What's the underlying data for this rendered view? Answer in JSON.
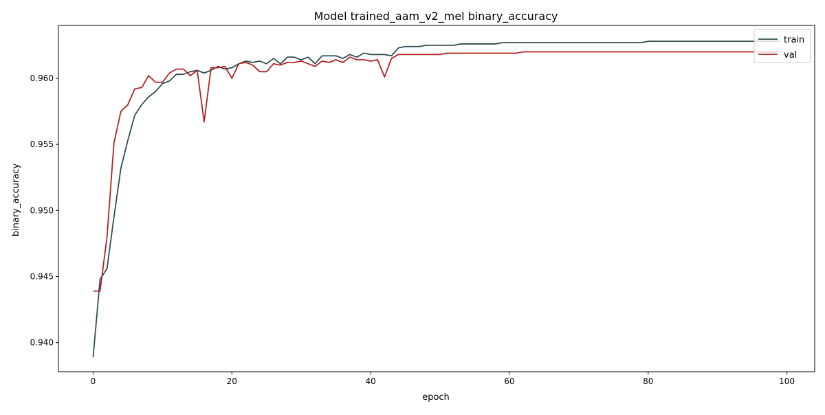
{
  "chart_data": {
    "type": "line",
    "title": "Model trained_aam_v2_mel binary_accuracy",
    "xlabel": "epoch",
    "ylabel": "binary_accuracy",
    "xlim": [
      -5,
      104
    ],
    "ylim": [
      0.9378,
      0.964
    ],
    "xticks": [
      0,
      20,
      40,
      60,
      80,
      100
    ],
    "yticks": [
      0.94,
      0.945,
      0.95,
      0.955,
      0.96
    ],
    "ytick_labels": [
      "0.940",
      "0.945",
      "0.950",
      "0.955",
      "0.960"
    ],
    "grid": false,
    "legend_position": "top-right",
    "series": [
      {
        "name": "train",
        "color": "#2f4f4f",
        "values": [
          0.9389,
          0.9448,
          0.9456,
          0.9495,
          0.9532,
          0.9553,
          0.9572,
          0.958,
          0.9586,
          0.959,
          0.9596,
          0.9598,
          0.9603,
          0.9603,
          0.9605,
          0.9606,
          0.9604,
          0.9606,
          0.9609,
          0.9607,
          0.9608,
          0.9611,
          0.9613,
          0.9612,
          0.9613,
          0.9611,
          0.9615,
          0.9611,
          0.9616,
          0.9616,
          0.9614,
          0.9616,
          0.9611,
          0.9617,
          0.9617,
          0.9617,
          0.9615,
          0.9618,
          0.9616,
          0.9619,
          0.9618,
          0.9618,
          0.9618,
          0.9617,
          0.9623,
          0.9624,
          0.9624,
          0.9624,
          0.9625,
          0.9625,
          0.9625,
          0.9625,
          0.9625,
          0.9626,
          0.9626,
          0.9626,
          0.9626,
          0.9626,
          0.9626,
          0.9627,
          0.9627,
          0.9627,
          0.9627,
          0.9627,
          0.9627,
          0.9627,
          0.9627,
          0.9627,
          0.9627,
          0.9627,
          0.9627,
          0.9627,
          0.9627,
          0.9627,
          0.9627,
          0.9627,
          0.9627,
          0.9627,
          0.9627,
          0.9627,
          0.9628,
          0.9628,
          0.9628,
          0.9628,
          0.9628,
          0.9628,
          0.9628,
          0.9628,
          0.9628,
          0.9628,
          0.9628,
          0.9628,
          0.9628,
          0.9628,
          0.9628,
          0.9628,
          0.9628,
          0.9628,
          0.9628,
          0.9628
        ]
      },
      {
        "name": "val",
        "color": "#b22222",
        "values": [
          0.9439,
          0.9439,
          0.948,
          0.9551,
          0.9575,
          0.958,
          0.9592,
          0.9593,
          0.9602,
          0.9597,
          0.9597,
          0.9604,
          0.9607,
          0.9607,
          0.9602,
          0.9606,
          0.9567,
          0.9608,
          0.9608,
          0.9609,
          0.96,
          0.9611,
          0.9612,
          0.961,
          0.9605,
          0.9605,
          0.9611,
          0.961,
          0.9612,
          0.9612,
          0.9613,
          0.9611,
          0.9609,
          0.9613,
          0.9612,
          0.9614,
          0.9612,
          0.9616,
          0.9614,
          0.9614,
          0.9613,
          0.9614,
          0.9601,
          0.9615,
          0.9618,
          0.9618,
          0.9618,
          0.9618,
          0.9618,
          0.9618,
          0.9618,
          0.9619,
          0.9619,
          0.9619,
          0.9619,
          0.9619,
          0.9619,
          0.9619,
          0.9619,
          0.9619,
          0.9619,
          0.9619,
          0.962,
          0.962,
          0.962,
          0.962,
          0.962,
          0.962,
          0.962,
          0.962,
          0.962,
          0.962,
          0.962,
          0.962,
          0.962,
          0.962,
          0.962,
          0.962,
          0.962,
          0.962,
          0.962,
          0.962,
          0.962,
          0.962,
          0.962,
          0.962,
          0.962,
          0.962,
          0.962,
          0.962,
          0.962,
          0.962,
          0.962,
          0.962,
          0.962,
          0.962,
          0.962,
          0.962,
          0.962,
          0.962
        ]
      }
    ]
  }
}
